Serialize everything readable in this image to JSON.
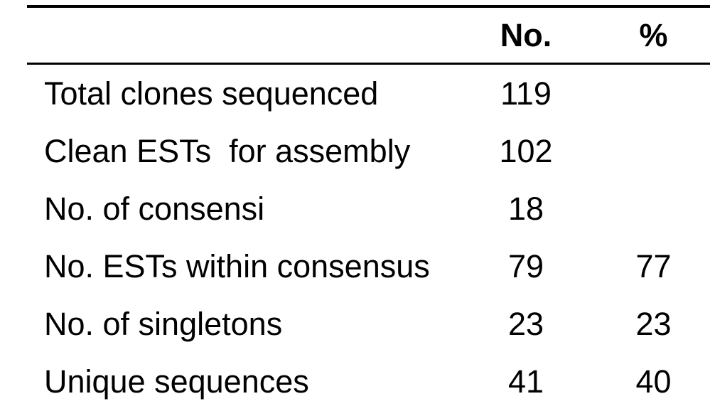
{
  "table": {
    "headers": {
      "label": "",
      "no": "No.",
      "pct": "%"
    },
    "rows": [
      {
        "label": "Total clones sequenced",
        "no": "119",
        "pct": ""
      },
      {
        "label": "Clean ESTs  for assembly",
        "no": "102",
        "pct": ""
      },
      {
        "label": "No. of consensi",
        "no": "18",
        "pct": ""
      },
      {
        "label": "No. ESTs within consensus",
        "no": "79",
        "pct": "77"
      },
      {
        "label": "No. of singletons",
        "no": "23",
        "pct": "23"
      },
      {
        "label": "Unique sequences",
        "no": "41",
        "pct": "40"
      }
    ]
  },
  "colors": {
    "background": "#ffffff",
    "text": "#000000",
    "rule": "#000000"
  }
}
